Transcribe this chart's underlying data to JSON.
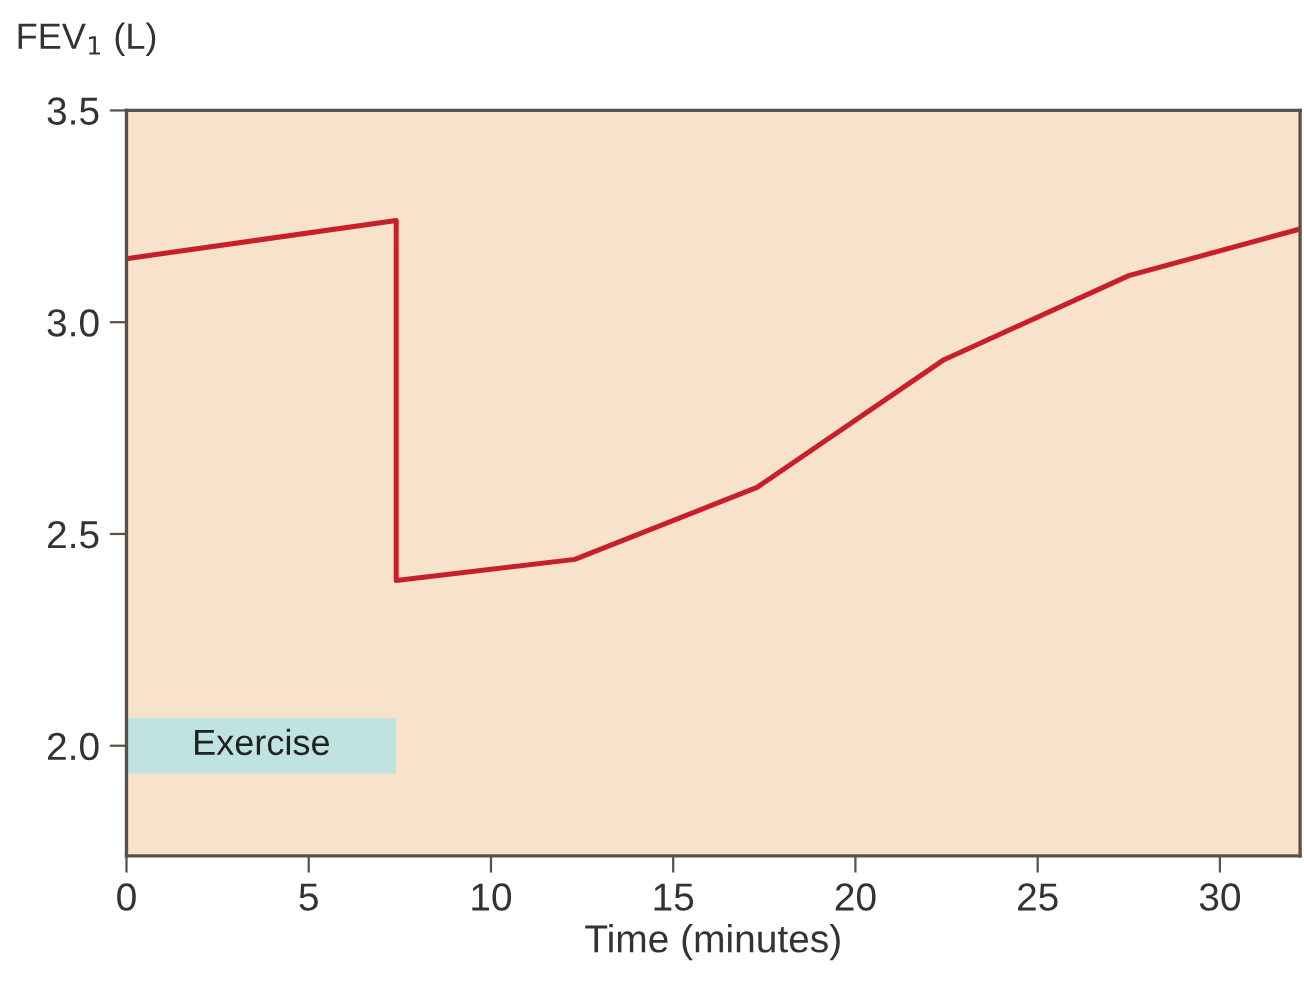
{
  "chart_data": {
    "type": "line",
    "ylabel": "FEV$_{1}$ (L)",
    "xlabel": "Time (minutes)",
    "x": [
      0,
      7.4,
      7.4,
      12.3,
      17.3,
      22.4,
      27.5,
      32.2
    ],
    "series": [
      {
        "color": "#c8202a",
        "values": [
          3.15,
          3.24,
          2.39,
          2.44,
          2.61,
          2.91,
          3.11,
          3.22
        ]
      }
    ],
    "xlim": [
      0,
      32.2
    ],
    "ylim": [
      1.74,
      3.5
    ],
    "xticks": [
      0,
      5,
      10,
      15,
      20,
      25,
      30
    ],
    "yticks": [
      {
        "value": 2.0,
        "label": "2.0"
      },
      {
        "value": 2.5,
        "label": "2.5"
      },
      {
        "value": 3.0,
        "label": "3.0"
      },
      {
        "value": 3.5,
        "label": "3.5"
      }
    ],
    "bands": [
      {
        "axis": "x",
        "from": 0,
        "to": 7.4,
        "label": "Exercise",
        "color": "#bfe3e0"
      }
    ],
    "grid": false,
    "legend": false,
    "marker": "none",
    "line_style": "solid"
  }
}
